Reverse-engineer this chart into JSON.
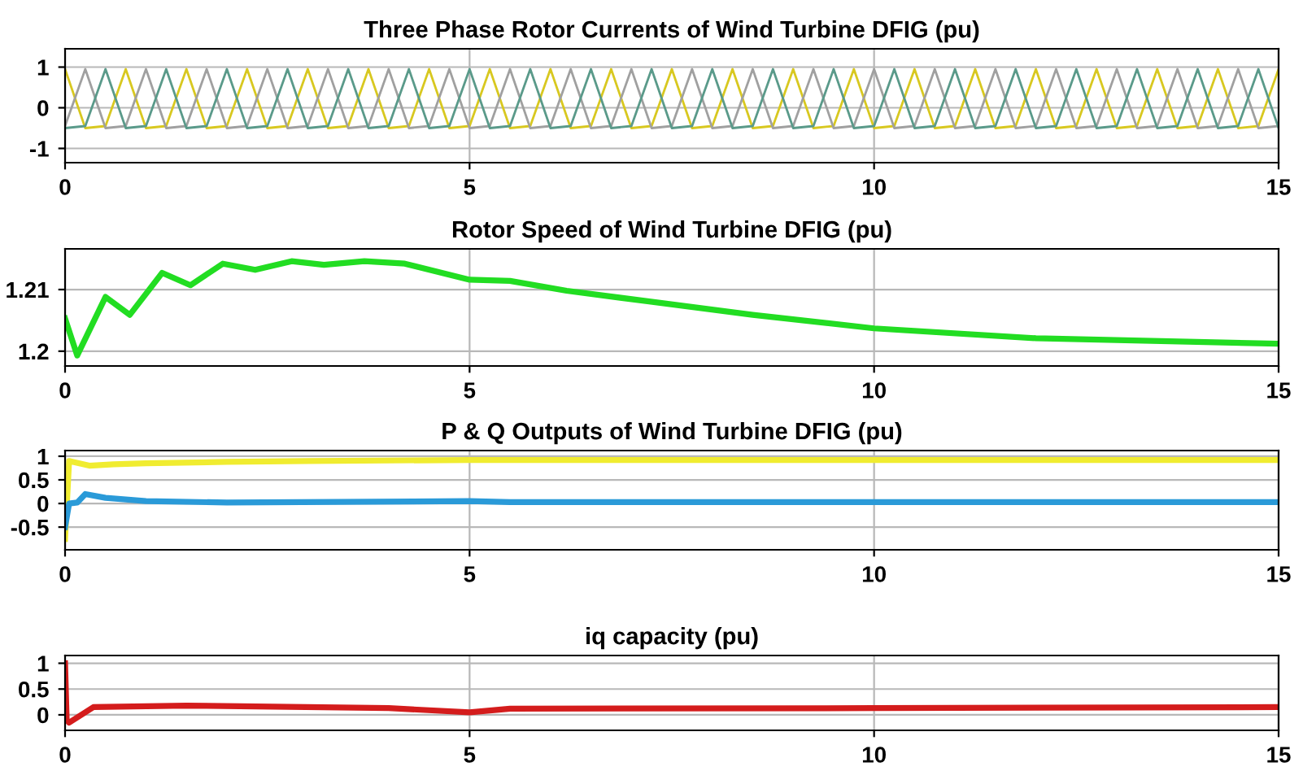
{
  "chart_data": [
    {
      "type": "line",
      "title": "Three Phase Rotor Currents of Wind Turbine DFIG (pu)",
      "x": [
        0,
        0.25,
        0.5,
        0.75,
        1,
        1.25,
        1.5,
        1.75,
        2,
        2.25,
        2.5,
        2.75,
        3,
        3.25,
        3.5,
        3.75,
        4,
        4.25,
        4.5,
        4.75,
        5,
        5.25,
        5.5,
        5.75,
        6,
        6.25,
        6.5,
        6.75,
        7,
        7.25,
        7.5,
        7.75,
        8,
        8.25,
        8.5,
        8.75,
        9,
        9.25,
        9.5,
        9.75,
        10,
        10.25,
        10.5,
        10.75,
        11,
        11.25,
        11.5,
        11.75,
        12,
        12.25,
        12.5,
        12.75,
        13,
        13.25,
        13.5,
        13.75,
        14,
        14.25,
        14.5,
        14.75,
        15
      ],
      "series": [
        {
          "color": "#d8c820",
          "values": [
            0.95,
            -0.5,
            -0.45,
            0.95,
            -0.5,
            -0.45,
            0.95,
            -0.5,
            -0.45,
            0.95,
            -0.5,
            -0.45,
            0.95,
            -0.5,
            -0.45,
            0.95,
            -0.5,
            -0.45,
            0.95,
            -0.5,
            -0.45,
            0.95,
            -0.5,
            -0.45,
            0.95,
            -0.5,
            -0.45,
            0.95,
            -0.5,
            -0.45,
            0.95,
            -0.5,
            -0.45,
            0.95,
            -0.5,
            -0.45,
            0.95,
            -0.5,
            -0.45,
            0.95,
            -0.5,
            -0.45,
            0.95,
            -0.5,
            -0.45,
            0.95,
            -0.5,
            -0.45,
            0.95,
            -0.5,
            -0.45,
            0.95,
            -0.5,
            -0.45,
            0.95,
            -0.5,
            -0.45,
            0.95,
            -0.5,
            -0.45,
            0.95
          ]
        },
        {
          "color": "#a0a0a0",
          "values": [
            -0.45,
            0.95,
            -0.5,
            -0.45,
            0.95,
            -0.5,
            -0.45,
            0.95,
            -0.5,
            -0.45,
            0.95,
            -0.5,
            -0.45,
            0.95,
            -0.5,
            -0.45,
            0.95,
            -0.5,
            -0.45,
            0.95,
            -0.5,
            -0.45,
            0.95,
            -0.5,
            -0.45,
            0.95,
            -0.5,
            -0.45,
            0.95,
            -0.5,
            -0.45,
            0.95,
            -0.5,
            -0.45,
            0.95,
            -0.5,
            -0.45,
            0.95,
            -0.5,
            -0.45,
            0.95,
            -0.5,
            -0.45,
            0.95,
            -0.5,
            -0.45,
            0.95,
            -0.5,
            -0.45,
            0.95,
            -0.5,
            -0.45,
            0.95,
            -0.5,
            -0.45,
            0.95,
            -0.5,
            -0.45,
            0.95,
            -0.5,
            -0.45
          ]
        },
        {
          "color": "#5a9a8a",
          "values": [
            -0.5,
            -0.45,
            0.95,
            -0.5,
            -0.45,
            0.95,
            -0.5,
            -0.45,
            0.95,
            -0.5,
            -0.45,
            0.95,
            -0.5,
            -0.45,
            0.95,
            -0.5,
            -0.45,
            0.95,
            -0.5,
            -0.45,
            0.95,
            -0.5,
            -0.45,
            0.95,
            -0.5,
            -0.45,
            0.95,
            -0.5,
            -0.45,
            0.95,
            -0.5,
            -0.45,
            0.95,
            -0.5,
            -0.45,
            0.95,
            -0.5,
            -0.45,
            0.95,
            -0.5,
            -0.45,
            0.95,
            -0.5,
            -0.45,
            0.95,
            -0.5,
            -0.45,
            0.95,
            -0.5,
            -0.45,
            0.95,
            -0.5,
            -0.45,
            0.95,
            -0.5,
            -0.45,
            0.95,
            -0.5,
            -0.45,
            0.95,
            -0.5
          ]
        }
      ],
      "xlim": [
        0,
        15
      ],
      "xticks": [
        0,
        5,
        10,
        15
      ],
      "ylim": [
        -1.35,
        1.45
      ],
      "yticks": [
        -1,
        0,
        1
      ],
      "grid": true
    },
    {
      "type": "line",
      "title": "Rotor Speed of Wind Turbine DFIG (pu)",
      "series": [
        {
          "color": "#22dd22",
          "x": [
            0,
            0.15,
            0.5,
            0.8,
            1.2,
            1.55,
            1.95,
            2.35,
            2.8,
            3.2,
            3.7,
            4.2,
            5,
            5.5,
            6.2,
            7.2,
            8.5,
            10,
            12,
            15
          ],
          "values": [
            1.2053,
            1.1993,
            1.2088,
            1.2059,
            1.2127,
            1.2107,
            1.2142,
            1.2132,
            1.2146,
            1.214,
            1.2146,
            1.2142,
            1.2116,
            1.2114,
            1.2098,
            1.2081,
            1.2059,
            1.2037,
            1.2021,
            1.2012
          ]
        }
      ],
      "xlim": [
        0,
        15
      ],
      "xticks": [
        0,
        5,
        10,
        15
      ],
      "ylim": [
        1.1976,
        1.2166
      ],
      "yticks": [
        1.2,
        1.21
      ],
      "grid": true
    },
    {
      "type": "line",
      "title": "P & Q Outputs of Wind Turbine DFIG (pu)",
      "series": [
        {
          "color": "#f0ec30",
          "x": [
            0,
            0.05,
            0.1,
            0.3,
            0.6,
            1,
            2,
            3,
            5,
            10,
            15
          ],
          "values": [
            -0.75,
            0.9,
            0.88,
            0.8,
            0.83,
            0.85,
            0.88,
            0.9,
            0.92,
            0.92,
            0.92
          ]
        },
        {
          "color": "#2a9ad8",
          "x": [
            0,
            0.05,
            0.15,
            0.25,
            0.5,
            1,
            2,
            5,
            5.5,
            10,
            15
          ],
          "values": [
            -0.5,
            0,
            0.02,
            0.2,
            0.12,
            0.05,
            0.02,
            0.05,
            0.03,
            0.03,
            0.03
          ]
        }
      ],
      "xlim": [
        0,
        15
      ],
      "xticks": [
        0,
        5,
        10,
        15
      ],
      "ylim": [
        -0.98,
        1.12
      ],
      "yticks": [
        -0.5,
        0,
        0.5,
        1
      ],
      "grid": true
    },
    {
      "type": "line",
      "title": "iq capacity (pu)",
      "series": [
        {
          "color": "#d41c1c",
          "x": [
            0,
            0.02,
            0.05,
            0.35,
            1.5,
            4,
            5,
            5.5,
            10,
            15
          ],
          "values": [
            1.0,
            -0.1,
            -0.15,
            0.15,
            0.18,
            0.13,
            0.05,
            0.12,
            0.13,
            0.15
          ]
        }
      ],
      "xlim": [
        0,
        15
      ],
      "xticks": [
        0,
        5,
        10,
        15
      ],
      "ylim": [
        -0.3,
        1.15
      ],
      "yticks": [
        0,
        0.5,
        1
      ],
      "grid": true
    }
  ]
}
